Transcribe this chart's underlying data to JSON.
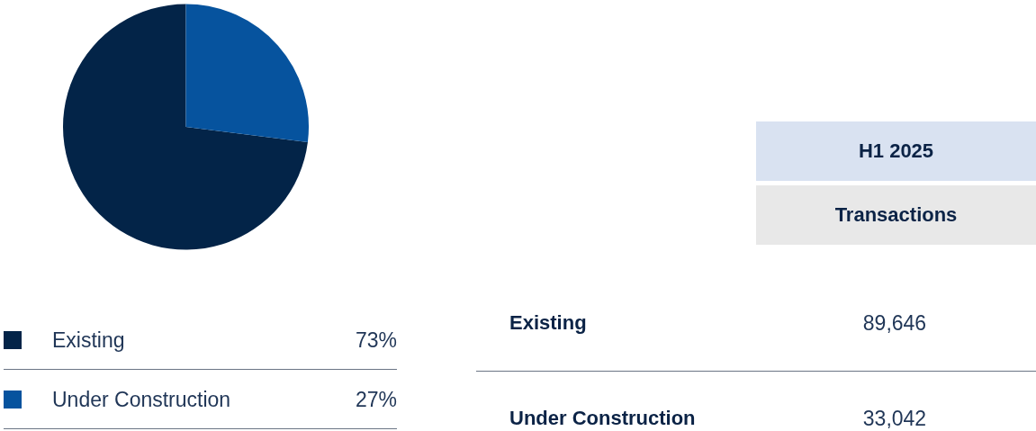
{
  "chart_data": [
    {
      "type": "pie",
      "categories": [
        "Existing",
        "Under Construction"
      ],
      "values": [
        73,
        27
      ],
      "value_labels": [
        "73%",
        "27%"
      ],
      "colors": [
        "#032448",
        "#06539e"
      ],
      "legend": "bottom"
    },
    {
      "type": "other",
      "title": "H1 2025",
      "subtitle": "Transactions",
      "categories": [
        "Existing",
        "Under Construction"
      ],
      "values": [
        89646,
        33042
      ],
      "value_labels": [
        "89,646",
        "33,042"
      ]
    }
  ]
}
